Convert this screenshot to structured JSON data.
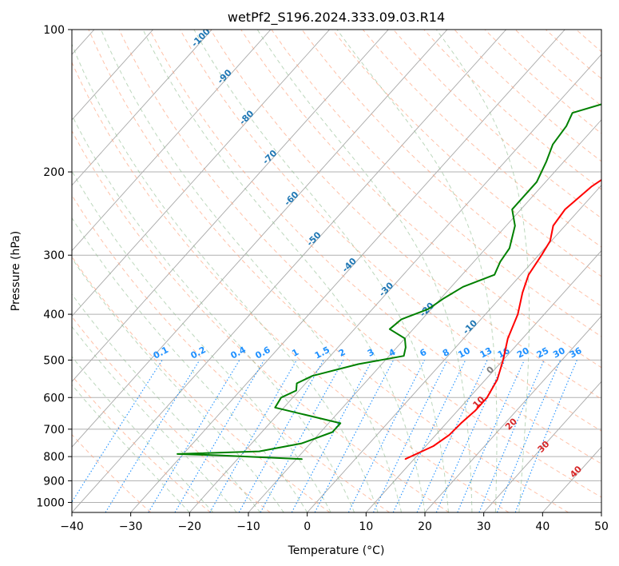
{
  "chart_data": {
    "type": "line",
    "title": "wetPf2_S196.2024.333.09.03.R14",
    "xlabel": "Temperature (°C)",
    "ylabel": "Pressure (hPa)",
    "xlim": [
      -40,
      50
    ],
    "ylim": [
      1050,
      100
    ],
    "y_scale": "log",
    "grid": true,
    "x_ticks": [
      -40,
      -30,
      -20,
      -10,
      0,
      10,
      20,
      30,
      40,
      50
    ],
    "y_ticks": [
      100,
      200,
      300,
      400,
      500,
      600,
      700,
      800,
      900,
      1000
    ],
    "colors": {
      "temperature": "#ff0000",
      "dewpoint": "#008000",
      "isotherm": "#999999",
      "dry_adiabat": "#ffa07a",
      "moist_adiabat": "#8fbc8f",
      "mixing_ratio": "#1e90ff",
      "potential_temp_label": "#1f77b4",
      "theta_e_label": "#d62728"
    },
    "series": [
      {
        "key": "temperature",
        "points": [
          {
            "p": 100,
            "t": 20.9
          },
          {
            "p": 110,
            "t": 18.5
          },
          {
            "p": 125,
            "t": 15.5
          },
          {
            "p": 140,
            "t": 13.5
          },
          {
            "p": 160,
            "t": 12.0
          },
          {
            "p": 175,
            "t": 7.0
          },
          {
            "p": 190,
            "t": 2.5
          },
          {
            "p": 200,
            "t": 0.0
          },
          {
            "p": 215,
            "t": -1.5
          },
          {
            "p": 240,
            "t": -2.5
          },
          {
            "p": 260,
            "t": -2.0
          },
          {
            "p": 280,
            "t": -0.2
          },
          {
            "p": 300,
            "t": 0.5
          },
          {
            "p": 330,
            "t": 1.3
          },
          {
            "p": 360,
            "t": 3.0
          },
          {
            "p": 400,
            "t": 5.5
          },
          {
            "p": 450,
            "t": 7.5
          },
          {
            "p": 500,
            "t": 10.0
          },
          {
            "p": 550,
            "t": 12.0
          },
          {
            "p": 600,
            "t": 13.0
          },
          {
            "p": 640,
            "t": 13.0
          },
          {
            "p": 680,
            "t": 12.5
          },
          {
            "p": 720,
            "t": 12.3
          },
          {
            "p": 760,
            "t": 11.3
          },
          {
            "p": 790,
            "t": 9.6
          },
          {
            "p": 810,
            "t": 8.5
          }
        ]
      },
      {
        "key": "dewpoint",
        "points": [
          {
            "p": 100,
            "t": -3.5
          },
          {
            "p": 110,
            "t": -5.5
          },
          {
            "p": 125,
            "t": -6.5
          },
          {
            "p": 140,
            "t": -10.0
          },
          {
            "p": 150,
            "t": -16.0
          },
          {
            "p": 160,
            "t": -15.0
          },
          {
            "p": 175,
            "t": -14.5
          },
          {
            "p": 190,
            "t": -13.0
          },
          {
            "p": 210,
            "t": -11.5
          },
          {
            "p": 240,
            "t": -11.5
          },
          {
            "p": 260,
            "t": -8.5
          },
          {
            "p": 290,
            "t": -6.0
          },
          {
            "p": 310,
            "t": -5.5
          },
          {
            "p": 330,
            "t": -4.5
          },
          {
            "p": 350,
            "t": -8.0
          },
          {
            "p": 370,
            "t": -9.5
          },
          {
            "p": 390,
            "t": -10.5
          },
          {
            "p": 410,
            "t": -13.5
          },
          {
            "p": 430,
            "t": -14.0
          },
          {
            "p": 450,
            "t": -10.0
          },
          {
            "p": 470,
            "t": -8.5
          },
          {
            "p": 490,
            "t": -7.5
          },
          {
            "p": 510,
            "t": -14.0
          },
          {
            "p": 540,
            "t": -20.0
          },
          {
            "p": 560,
            "t": -21.5
          },
          {
            "p": 580,
            "t": -20.5
          },
          {
            "p": 600,
            "t": -22.0
          },
          {
            "p": 630,
            "t": -21.5
          },
          {
            "p": 650,
            "t": -16.0
          },
          {
            "p": 680,
            "t": -8.0
          },
          {
            "p": 710,
            "t": -8.0
          },
          {
            "p": 750,
            "t": -11.5
          },
          {
            "p": 780,
            "t": -17.5
          },
          {
            "p": 790,
            "t": -31.0
          },
          {
            "p": 795,
            "t": -24.0
          },
          {
            "p": 810,
            "t": -9.0
          }
        ]
      }
    ],
    "potential_temp_labels": [
      "-100",
      "-90",
      "-80",
      "-70",
      "-60",
      "-50",
      "-40",
      "-30",
      "-20",
      "-10",
      "0"
    ],
    "theta_e_labels": [
      "10",
      "20",
      "30",
      "40"
    ],
    "mixing_ratio_labels": [
      "0.1",
      "0.2",
      "0.4",
      "0.6",
      "1",
      "1.5",
      "2",
      "3",
      "4",
      "6",
      "8",
      "10",
      "13",
      "16",
      "20",
      "25",
      "30",
      "36"
    ]
  }
}
